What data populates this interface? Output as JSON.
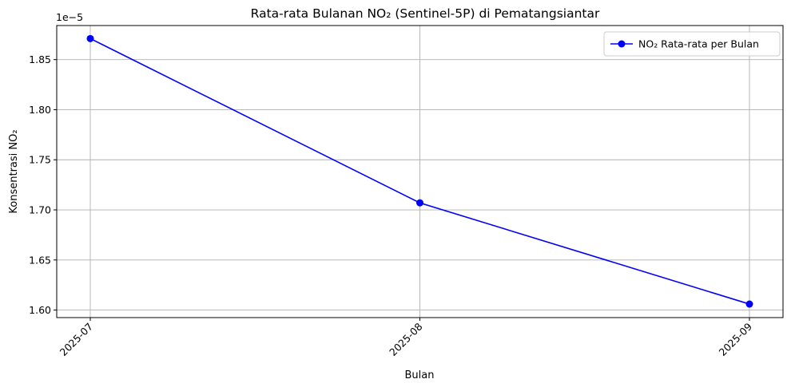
{
  "chart_data": {
    "type": "line",
    "title": "Rata-rata Bulanan NO₂ (Sentinel-5P) di Pematangsiantar",
    "xlabel": "Bulan",
    "ylabel": "Konsentrasi NO₂",
    "y_offset_label": "1e−5",
    "categories": [
      "2025-07",
      "2025-08",
      "2025-09"
    ],
    "series": [
      {
        "name": "NO₂ Rata-rata per Bulan",
        "color": "#0000ff",
        "marker": "circle",
        "values": [
          1.871e-05,
          1.707e-05,
          1.606e-05
        ]
      }
    ],
    "yticks": [
      1.6e-05,
      1.65e-05,
      1.7e-05,
      1.75e-05,
      1.8e-05,
      1.85e-05
    ],
    "ytick_labels": [
      "1.60",
      "1.65",
      "1.70",
      "1.75",
      "1.80",
      "1.85"
    ],
    "ylim": [
      1.5925e-05,
      1.884e-05
    ],
    "grid": true,
    "legend_position": "top-right",
    "x_tick_rotation_deg": 45
  }
}
